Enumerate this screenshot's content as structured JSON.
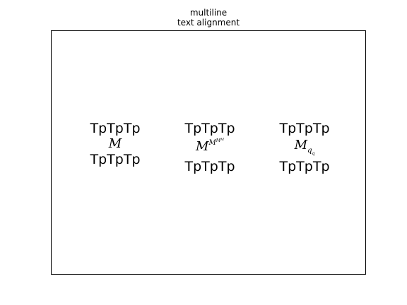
{
  "title": {
    "line1": "multiline",
    "line2": "text alignment"
  },
  "blocks": [
    {
      "top": "TpTpTp",
      "math_base": "M",
      "bottom": "TpTpTp"
    },
    {
      "top": "TpTpTp",
      "math_base": "M",
      "sup1": "M",
      "sup2": "M",
      "sup3": "M",
      "bottom": "TpTpTp"
    },
    {
      "top": "TpTpTp",
      "math_base": "M",
      "sub1": "q",
      "sub2": "q",
      "bottom": "TpTpTp"
    }
  ]
}
